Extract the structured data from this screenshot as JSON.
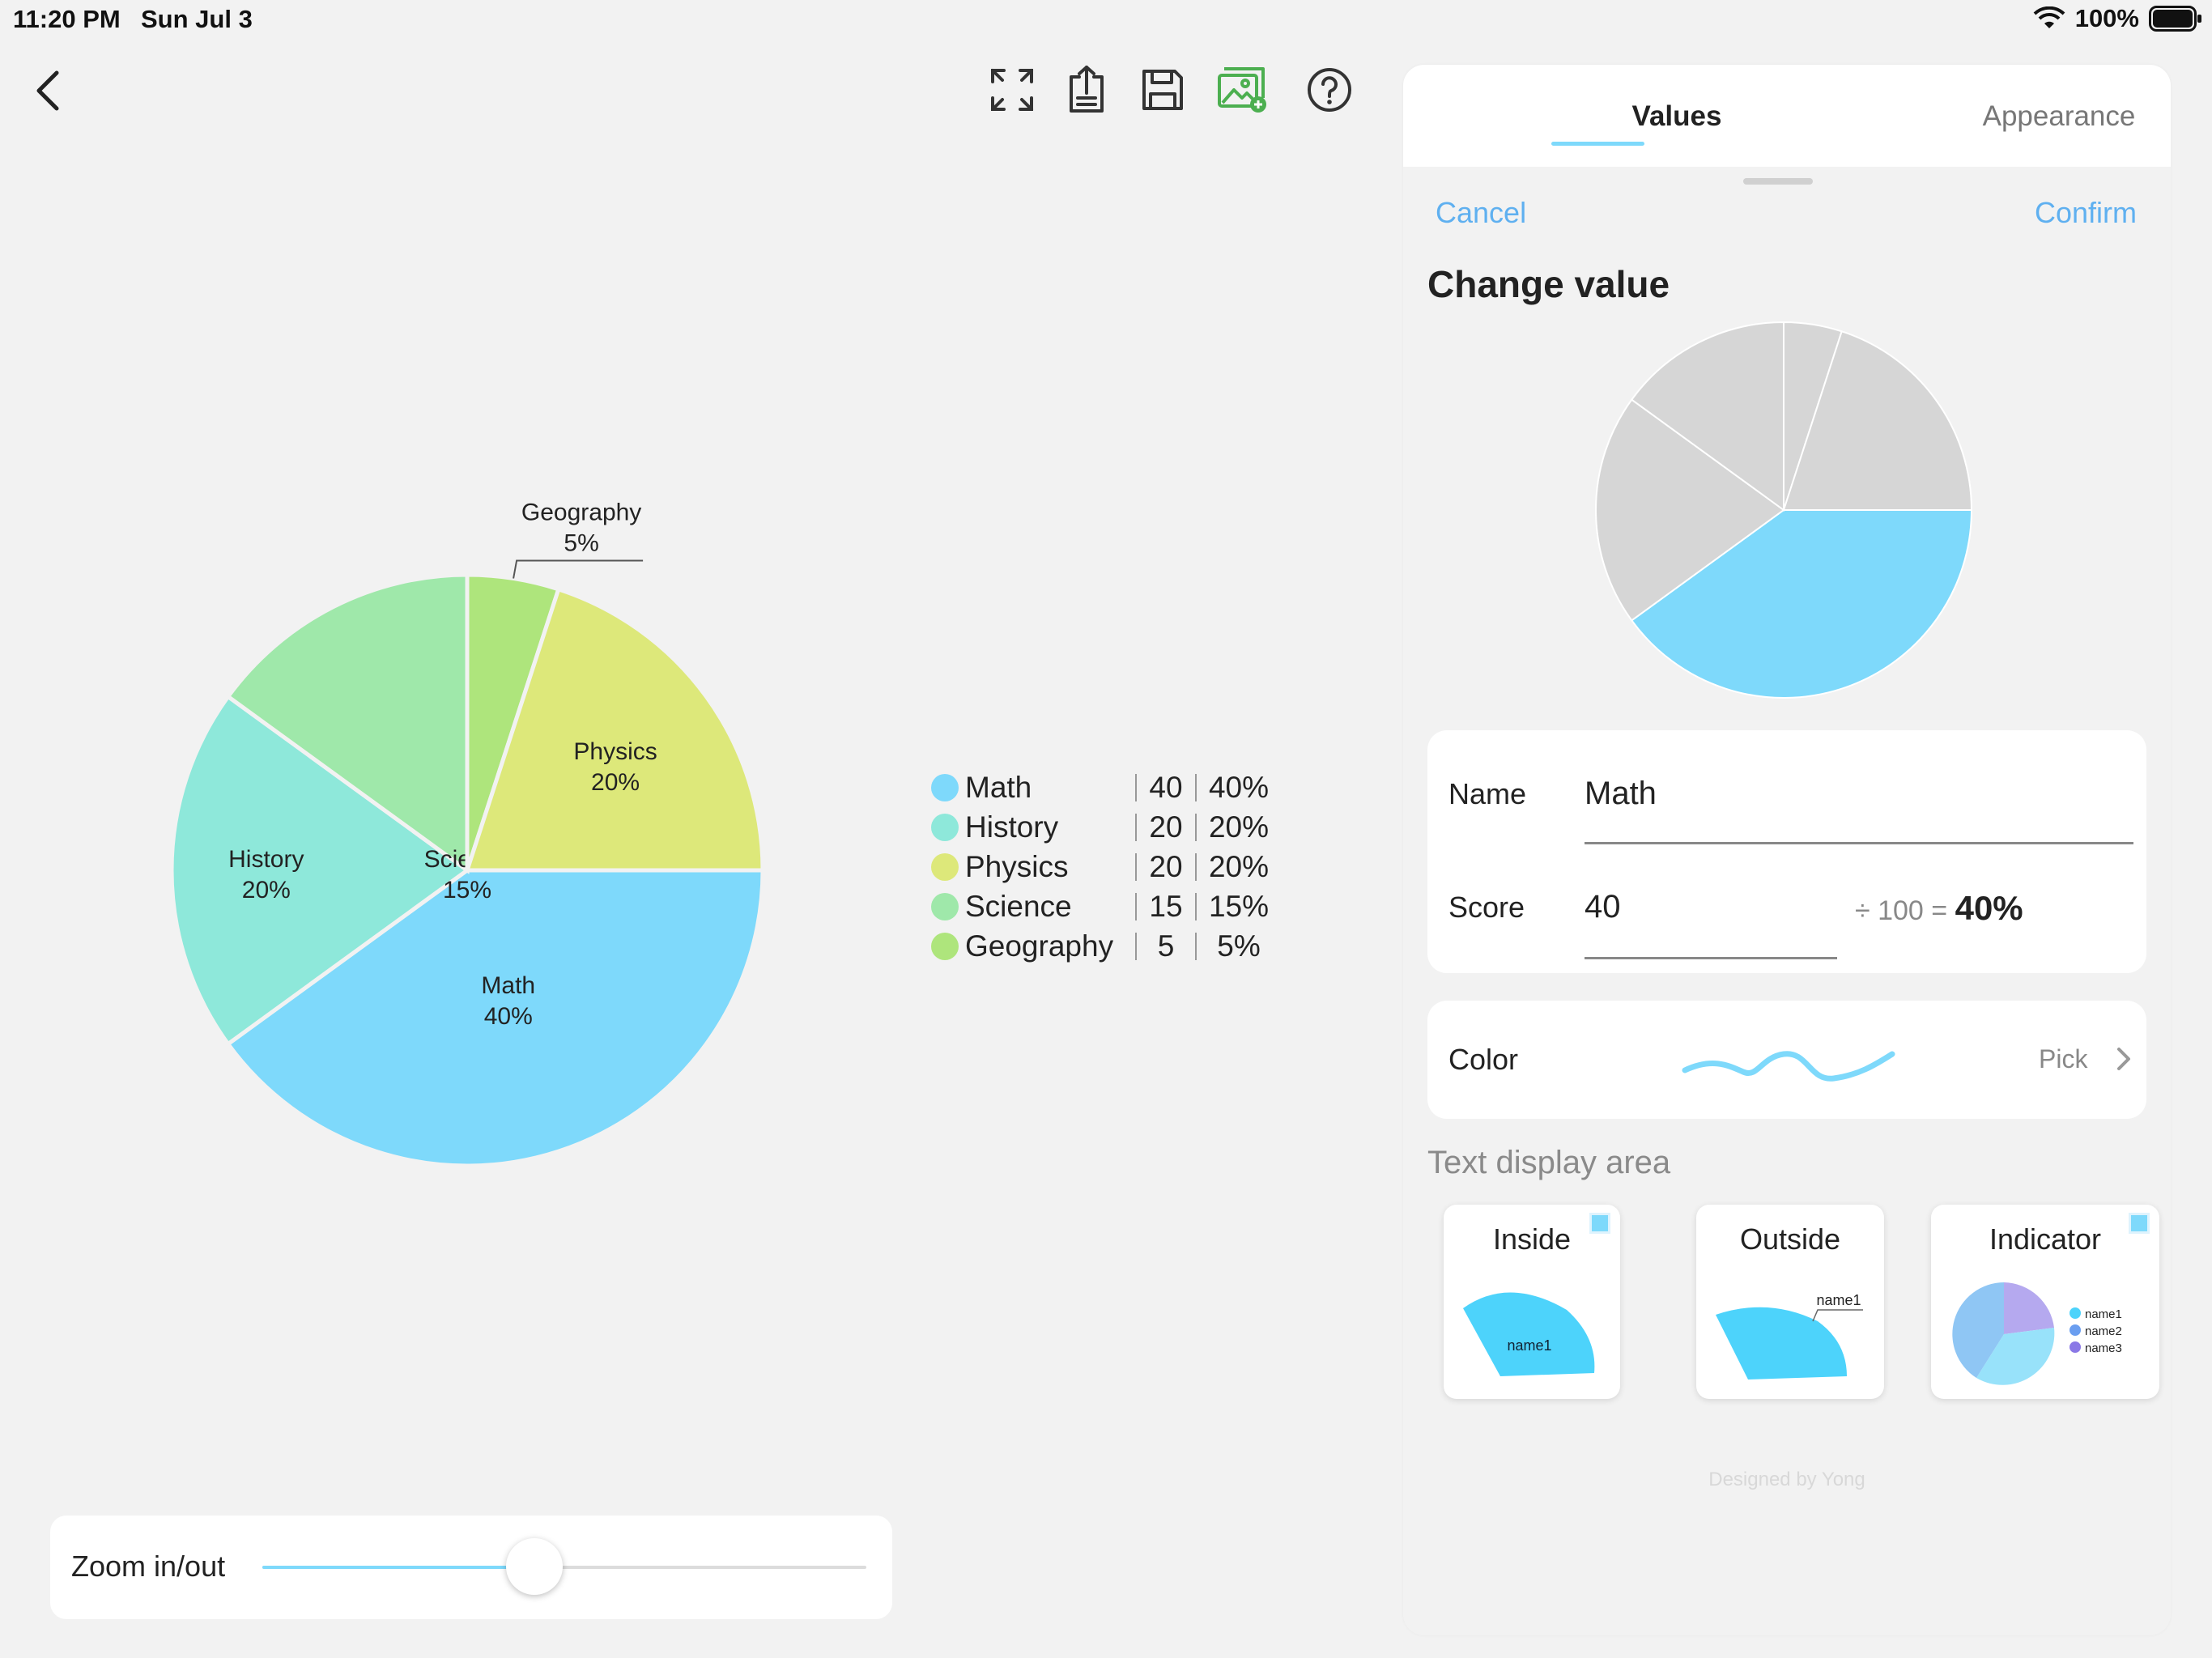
{
  "status_bar": {
    "time": "11:20 PM",
    "date": "Sun Jul 3",
    "battery": "100%"
  },
  "toolbar": {
    "icons": [
      "fullscreen-icon",
      "export-icon",
      "save-icon",
      "image-add-icon",
      "help-icon"
    ],
    "accent_color": "#4caf50"
  },
  "chart_data": {
    "type": "pie",
    "categories": [
      "Math",
      "History",
      "Physics",
      "Science",
      "Geography"
    ],
    "values": [
      40,
      20,
      20,
      15,
      5
    ],
    "percents": [
      "40%",
      "20%",
      "20%",
      "15%",
      "5%"
    ],
    "colors": [
      "#7ed9fb",
      "#8ee8da",
      "#dde87a",
      "#9fe8aa",
      "#aee57c"
    ],
    "slice_labels": [
      {
        "name": "Math",
        "pct": "40%"
      },
      {
        "name": "History",
        "pct": "20%"
      },
      {
        "name": "Physics",
        "pct": "20%"
      },
      {
        "name": "Science",
        "pct": "15%"
      },
      {
        "name": "Geography",
        "pct": "5%"
      }
    ]
  },
  "legend": [
    {
      "name": "Math",
      "value": "40",
      "pct": "40%",
      "color": "#7ed9fb"
    },
    {
      "name": "History",
      "value": "20",
      "pct": "20%",
      "color": "#8ee8da"
    },
    {
      "name": "Physics",
      "value": "20",
      "pct": "20%",
      "color": "#dde87a"
    },
    {
      "name": "Science",
      "value": "15",
      "pct": "15%",
      "color": "#9fe8aa"
    },
    {
      "name": "Geography",
      "value": "5",
      "pct": "5%",
      "color": "#aee57c"
    }
  ],
  "zoom": {
    "label": "Zoom in/out",
    "level": 0.45
  },
  "sheet": {
    "tabs": {
      "values": "Values",
      "appearance": "Appearance"
    },
    "cancel": "Cancel",
    "confirm": "Confirm",
    "title": "Change value",
    "preview_highlight_color": "#7ed9fb",
    "preview_other_color": "#d6d6d6",
    "form": {
      "name_label": "Name",
      "name_value": "Math",
      "score_label": "Score",
      "score_value": "40",
      "score_divisor": "÷ 100 =",
      "score_pct": "40%"
    },
    "color": {
      "label": "Color",
      "pick": "Pick",
      "value": "#7ed9fb"
    },
    "text_display": {
      "title": "Text display area",
      "options": [
        {
          "title": "Inside",
          "sample": "name1",
          "checked": true
        },
        {
          "title": "Outside",
          "sample": "name1",
          "checked": false
        },
        {
          "title": "Indicator",
          "samples": [
            "name1",
            "name2",
            "name3"
          ],
          "checked": true
        }
      ]
    },
    "credit": "Designed by Yong"
  }
}
